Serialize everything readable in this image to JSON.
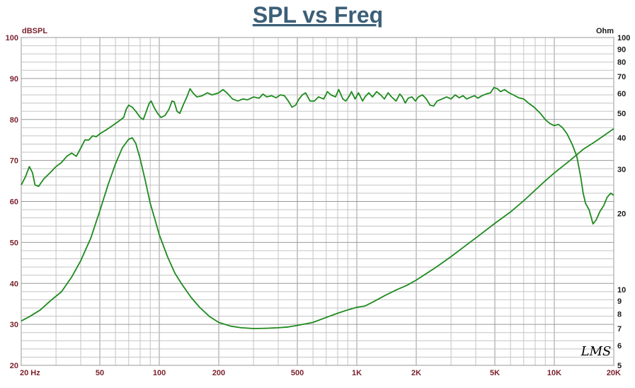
{
  "chart_data": {
    "type": "line",
    "title": "SPL vs Freq",
    "left_axis_unit": "dBSPL",
    "right_axis_unit": "Ohm",
    "x_scale": "log",
    "xlim": [
      20,
      20000
    ],
    "x_ticks": [
      {
        "value": 20,
        "label": "20  Hz"
      },
      {
        "value": 50,
        "label": "50"
      },
      {
        "value": 100,
        "label": "100"
      },
      {
        "value": 200,
        "label": "200"
      },
      {
        "value": 500,
        "label": "500"
      },
      {
        "value": 1000,
        "label": "1K"
      },
      {
        "value": 2000,
        "label": "2K"
      },
      {
        "value": 5000,
        "label": "5K"
      },
      {
        "value": 10000,
        "label": "10K"
      },
      {
        "value": 20000,
        "label": "20K"
      }
    ],
    "y_left_lim": [
      20,
      100
    ],
    "y_left_ticks": [
      20,
      30,
      40,
      50,
      60,
      70,
      80,
      90,
      100
    ],
    "y_right_scale": "log",
    "y_right_lim": [
      5,
      100
    ],
    "y_right_ticks": [
      5,
      6,
      7,
      8,
      9,
      10,
      20,
      30,
      40,
      50,
      60,
      70,
      80,
      90,
      100
    ],
    "grid": true,
    "watermark": "LMS",
    "series": [
      {
        "axis": "left",
        "color": "#1e8a1e",
        "points": [
          [
            20,
            64
          ],
          [
            21,
            66
          ],
          [
            22,
            68.5
          ],
          [
            22.8,
            67
          ],
          [
            23.5,
            64
          ],
          [
            24.5,
            63.7
          ],
          [
            26,
            65.5
          ],
          [
            28,
            67
          ],
          [
            30,
            68.5
          ],
          [
            32,
            69.5
          ],
          [
            34,
            71
          ],
          [
            36,
            71.8
          ],
          [
            38,
            71
          ],
          [
            40,
            73
          ],
          [
            42,
            75
          ],
          [
            44,
            75
          ],
          [
            46,
            76
          ],
          [
            48,
            75.8
          ],
          [
            50,
            76.5
          ],
          [
            54,
            77.5
          ],
          [
            58,
            78.5
          ],
          [
            62,
            79.5
          ],
          [
            66,
            80.5
          ],
          [
            68,
            82.5
          ],
          [
            70,
            83.5
          ],
          [
            73,
            83
          ],
          [
            76,
            82
          ],
          [
            80,
            80.5
          ],
          [
            83,
            80
          ],
          [
            86,
            82
          ],
          [
            89,
            84
          ],
          [
            91,
            84.5
          ],
          [
            94,
            83
          ],
          [
            98,
            81.5
          ],
          [
            102,
            80.5
          ],
          [
            107,
            81
          ],
          [
            112,
            82.5
          ],
          [
            116,
            84.5
          ],
          [
            119,
            84.3
          ],
          [
            123,
            82
          ],
          [
            127,
            81.5
          ],
          [
            132,
            83.5
          ],
          [
            138,
            85.5
          ],
          [
            143,
            87.5
          ],
          [
            148,
            86.5
          ],
          [
            155,
            85.5
          ],
          [
            165,
            85.8
          ],
          [
            175,
            86.5
          ],
          [
            185,
            86
          ],
          [
            200,
            86.5
          ],
          [
            210,
            87.3
          ],
          [
            220,
            86.5
          ],
          [
            235,
            85
          ],
          [
            250,
            84.5
          ],
          [
            265,
            85
          ],
          [
            280,
            84.8
          ],
          [
            300,
            85.5
          ],
          [
            320,
            85.2
          ],
          [
            335,
            86.2
          ],
          [
            350,
            85.5
          ],
          [
            370,
            85.8
          ],
          [
            390,
            85.3
          ],
          [
            410,
            86
          ],
          [
            430,
            85.8
          ],
          [
            450,
            84.5
          ],
          [
            470,
            83
          ],
          [
            490,
            83.5
          ],
          [
            510,
            85
          ],
          [
            530,
            86
          ],
          [
            550,
            86.5
          ],
          [
            580,
            84.5
          ],
          [
            610,
            84.5
          ],
          [
            640,
            85.5
          ],
          [
            680,
            85
          ],
          [
            710,
            86.8
          ],
          [
            740,
            86
          ],
          [
            780,
            85.5
          ],
          [
            810,
            87.3
          ],
          [
            850,
            85
          ],
          [
            880,
            84.5
          ],
          [
            910,
            85.5
          ],
          [
            940,
            86.8
          ],
          [
            980,
            85
          ],
          [
            1020,
            86.5
          ],
          [
            1070,
            84.5
          ],
          [
            1100,
            85.5
          ],
          [
            1150,
            86.5
          ],
          [
            1200,
            85.5
          ],
          [
            1260,
            86.8
          ],
          [
            1320,
            86
          ],
          [
            1380,
            85
          ],
          [
            1440,
            86.5
          ],
          [
            1500,
            85.5
          ],
          [
            1580,
            84.5
          ],
          [
            1650,
            86.2
          ],
          [
            1700,
            85.5
          ],
          [
            1760,
            84
          ],
          [
            1820,
            85.2
          ],
          [
            1900,
            85.5
          ],
          [
            1980,
            84.5
          ],
          [
            2050,
            85.5
          ],
          [
            2150,
            86
          ],
          [
            2250,
            85
          ],
          [
            2350,
            83.5
          ],
          [
            2450,
            83.3
          ],
          [
            2550,
            84.5
          ],
          [
            2700,
            85
          ],
          [
            2850,
            85.5
          ],
          [
            3000,
            85
          ],
          [
            3150,
            86
          ],
          [
            3300,
            85.3
          ],
          [
            3450,
            85.8
          ],
          [
            3600,
            85
          ],
          [
            3800,
            85.5
          ],
          [
            3950,
            85.8
          ],
          [
            4100,
            85.2
          ],
          [
            4300,
            85.8
          ],
          [
            4500,
            86.2
          ],
          [
            4750,
            86.5
          ],
          [
            4950,
            87.8
          ],
          [
            5150,
            87.5
          ],
          [
            5350,
            86.8
          ],
          [
            5600,
            87.3
          ],
          [
            5900,
            86.5
          ],
          [
            6200,
            86
          ],
          [
            6600,
            85.3
          ],
          [
            7000,
            85
          ],
          [
            7400,
            84
          ],
          [
            7900,
            83
          ],
          [
            8500,
            81.5
          ],
          [
            9000,
            80
          ],
          [
            9500,
            79
          ],
          [
            10000,
            78.5
          ],
          [
            10500,
            78.8
          ],
          [
            11000,
            78
          ],
          [
            11600,
            76.5
          ],
          [
            12300,
            74
          ],
          [
            13000,
            71
          ],
          [
            13600,
            66
          ],
          [
            14000,
            62
          ],
          [
            14400,
            59.5
          ],
          [
            15000,
            58
          ],
          [
            15700,
            54.5
          ],
          [
            16300,
            55.5
          ],
          [
            17000,
            57.5
          ],
          [
            17800,
            59
          ],
          [
            18500,
            61
          ],
          [
            19300,
            62
          ],
          [
            20000,
            61.5
          ]
        ]
      },
      {
        "axis": "right",
        "color": "#1e8a1e",
        "points": [
          [
            20,
            7.5
          ],
          [
            22,
            7.8
          ],
          [
            25,
            8.3
          ],
          [
            28,
            9
          ],
          [
            32,
            9.8
          ],
          [
            36,
            11.2
          ],
          [
            40,
            13
          ],
          [
            45,
            16
          ],
          [
            50,
            20.5
          ],
          [
            55,
            26
          ],
          [
            60,
            31.5
          ],
          [
            65,
            36.5
          ],
          [
            70,
            39.5
          ],
          [
            73,
            40
          ],
          [
            76,
            38
          ],
          [
            80,
            33
          ],
          [
            85,
            27
          ],
          [
            90,
            22
          ],
          [
            95,
            19
          ],
          [
            100,
            16.5
          ],
          [
            110,
            13.5
          ],
          [
            120,
            11.6
          ],
          [
            130,
            10.5
          ],
          [
            145,
            9.3
          ],
          [
            160,
            8.5
          ],
          [
            180,
            7.8
          ],
          [
            200,
            7.4
          ],
          [
            230,
            7.15
          ],
          [
            260,
            7.05
          ],
          [
            300,
            7
          ],
          [
            350,
            7.02
          ],
          [
            400,
            7.05
          ],
          [
            450,
            7.1
          ],
          [
            500,
            7.2
          ],
          [
            600,
            7.4
          ],
          [
            700,
            7.75
          ],
          [
            800,
            8.05
          ],
          [
            900,
            8.3
          ],
          [
            1000,
            8.5
          ],
          [
            1100,
            8.6
          ],
          [
            1200,
            8.9
          ],
          [
            1400,
            9.5
          ],
          [
            1600,
            10
          ],
          [
            1800,
            10.4
          ],
          [
            2000,
            10.9
          ],
          [
            2500,
            12.2
          ],
          [
            3000,
            13.5
          ],
          [
            3500,
            14.8
          ],
          [
            4000,
            16
          ],
          [
            5000,
            18.3
          ],
          [
            6000,
            20.3
          ],
          [
            7000,
            22.5
          ],
          [
            8000,
            24.8
          ],
          [
            9000,
            27
          ],
          [
            10000,
            29
          ],
          [
            12000,
            32.5
          ],
          [
            14000,
            36
          ],
          [
            16000,
            38.5
          ],
          [
            18000,
            41
          ],
          [
            20000,
            43.5
          ]
        ]
      }
    ]
  }
}
